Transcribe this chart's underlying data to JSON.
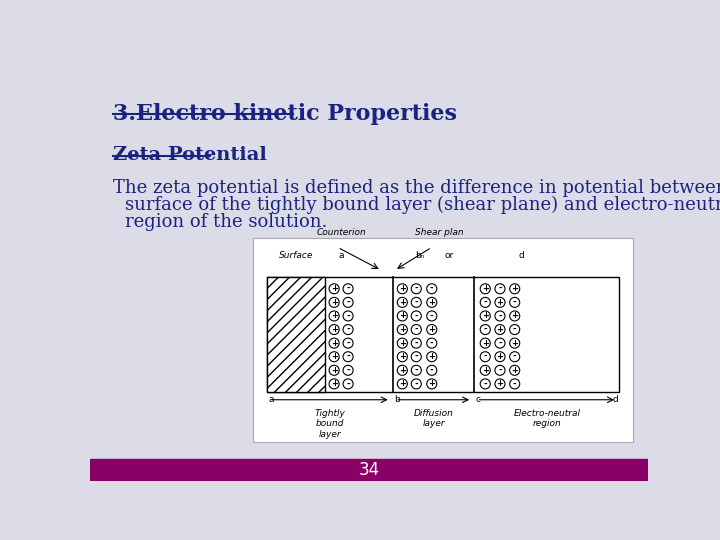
{
  "slide_bg": "#dcdce8",
  "title": "3.Electro kinetic Properties",
  "subtitle": "Zeta Potential",
  "body_text_line1": "The zeta potential is defined as the difference in potential between the",
  "body_text_line2": "surface of the tightly bound layer (shear plane) and electro-neutral",
  "body_text_line3": "region of the solution.",
  "footer_color": "#8b0066",
  "footer_text": "34",
  "title_color": "#1a237e",
  "subtitle_color": "#1a237e",
  "body_color": "#1a237e",
  "title_fontsize": 16,
  "subtitle_fontsize": 14,
  "body_fontsize": 13,
  "footer_fontsize": 12
}
